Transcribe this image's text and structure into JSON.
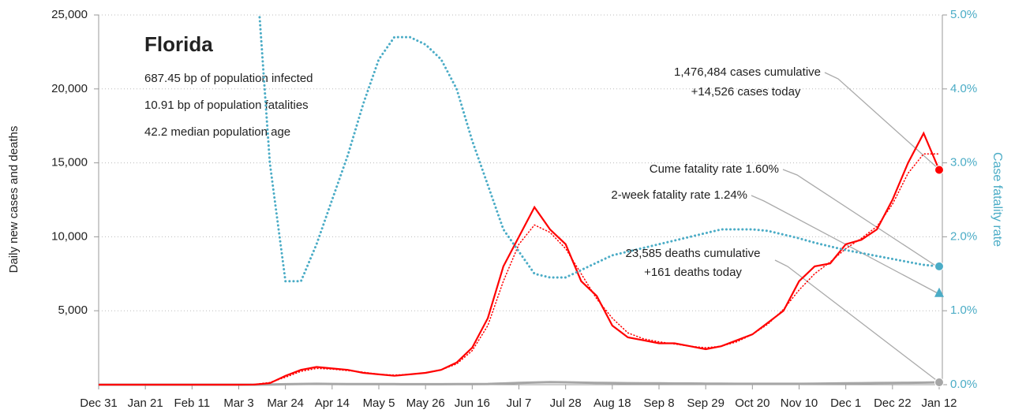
{
  "chart_data": {
    "type": "line",
    "title": "Florida",
    "notes": [
      "687.45 bp of population infected",
      "10.91 bp of population fatalities",
      "42.2 median population age"
    ],
    "callouts": [
      "1,476,484 cases cumulative",
      "+14,526 cases today",
      "Cume fatality rate 1.60%",
      "2-week fatality rate 1.24%",
      "23,585 deaths cumulative",
      "+161 deaths today"
    ],
    "ylabel": "Daily new cases and deaths",
    "y2label": "Case fatality rate",
    "categories": [
      "Dec 31",
      null,
      null,
      "Jan 21",
      null,
      null,
      "Feb 11",
      null,
      null,
      "Mar 3",
      null,
      null,
      "Mar 24",
      null,
      null,
      "Apr 14",
      null,
      null,
      "May 5",
      null,
      null,
      "May 26",
      null,
      null,
      "Jun 16",
      null,
      null,
      "Jul 7",
      null,
      null,
      "Jul 28",
      null,
      null,
      "Aug 18",
      null,
      null,
      "Sep 8",
      null,
      null,
      "Sep 29",
      null,
      null,
      "Oct 20",
      null,
      null,
      "Nov 10",
      null,
      null,
      "Dec 1",
      null,
      null,
      "Dec 22",
      null,
      null,
      "Jan 12"
    ],
    "ylim": [
      0,
      25000
    ],
    "yticks": [
      {
        "value": 5000,
        "label": "5,000"
      },
      {
        "value": 10000,
        "label": "10,000"
      },
      {
        "value": 15000,
        "label": "15,000"
      },
      {
        "value": 20000,
        "label": "20,000"
      },
      {
        "value": 25000,
        "label": "25,000"
      }
    ],
    "y2lim": [
      0,
      5
    ],
    "y2ticks": [
      {
        "value": 0,
        "label": "0.0%"
      },
      {
        "value": 1,
        "label": "1.0%"
      },
      {
        "value": 2,
        "label": "2.0%"
      },
      {
        "value": 3,
        "label": "3.0%"
      },
      {
        "value": 4,
        "label": "4.0%"
      },
      {
        "value": 5,
        "label": "5.0%"
      }
    ],
    "grid": true,
    "series": [
      {
        "color": "#ff0000",
        "style": "solid",
        "end_marker": "circle",
        "values": [
          0,
          0,
          0,
          0,
          0,
          0,
          0,
          0,
          0,
          0,
          10,
          100,
          600,
          1000,
          1200,
          1100,
          1000,
          800,
          700,
          600,
          700,
          800,
          1000,
          1500,
          2500,
          4500,
          8000,
          10000,
          12000,
          10500,
          9500,
          7000,
          6000,
          4000,
          3200,
          3000,
          2800,
          2800,
          2600,
          2400,
          2600,
          3000,
          3400,
          4200,
          5000,
          7000,
          8000,
          8200,
          9500,
          9800,
          10500,
          12500,
          15000,
          17000,
          14526
        ]
      },
      {
        "color": "#ff0000",
        "style": "dotted",
        "values": [
          0,
          0,
          0,
          0,
          0,
          0,
          0,
          0,
          0,
          0,
          20,
          150,
          500,
          900,
          1100,
          1050,
          950,
          850,
          700,
          650,
          700,
          800,
          1000,
          1400,
          2300,
          4000,
          7000,
          9500,
          10800,
          10300,
          9200,
          7500,
          5800,
          4500,
          3500,
          3100,
          2900,
          2750,
          2600,
          2500,
          2600,
          2900,
          3400,
          4100,
          5100,
          6400,
          7500,
          8300,
          9200,
          9900,
          10700,
          12200,
          14300,
          15600,
          15600
        ]
      },
      {
        "color": "#a6a6a6",
        "style": "solid",
        "end_marker": "circle",
        "values": [
          0,
          0,
          0,
          0,
          0,
          0,
          0,
          0,
          0,
          0,
          2,
          10,
          30,
          50,
          60,
          50,
          45,
          40,
          35,
          35,
          30,
          30,
          30,
          35,
          40,
          50,
          80,
          120,
          150,
          170,
          160,
          140,
          120,
          110,
          100,
          90,
          90,
          80,
          80,
          70,
          70,
          60,
          60,
          60,
          60,
          60,
          70,
          80,
          90,
          100,
          110,
          120,
          130,
          140,
          161
        ]
      },
      {
        "color": "#4bacc6",
        "style": "dotted",
        "axis": "y2",
        "end_marker": "circle",
        "values": [
          null,
          null,
          null,
          null,
          null,
          null,
          null,
          null,
          null,
          null,
          6.0,
          3.0,
          1.4,
          1.4,
          1.9,
          2.5,
          3.1,
          3.8,
          4.4,
          4.7,
          4.7,
          4.6,
          4.4,
          4.0,
          3.3,
          2.7,
          2.1,
          1.8,
          1.5,
          1.45,
          1.45,
          1.55,
          1.65,
          1.75,
          1.8,
          1.85,
          1.9,
          1.95,
          2.0,
          2.05,
          2.1,
          2.1,
          2.1,
          2.08,
          2.03,
          1.98,
          1.92,
          1.87,
          1.82,
          1.78,
          1.74,
          1.7,
          1.66,
          1.62,
          1.6
        ]
      }
    ],
    "markers": [
      {
        "value": 1.24,
        "axis": "y2",
        "shape": "triangle",
        "color": "#4bacc6"
      }
    ]
  }
}
